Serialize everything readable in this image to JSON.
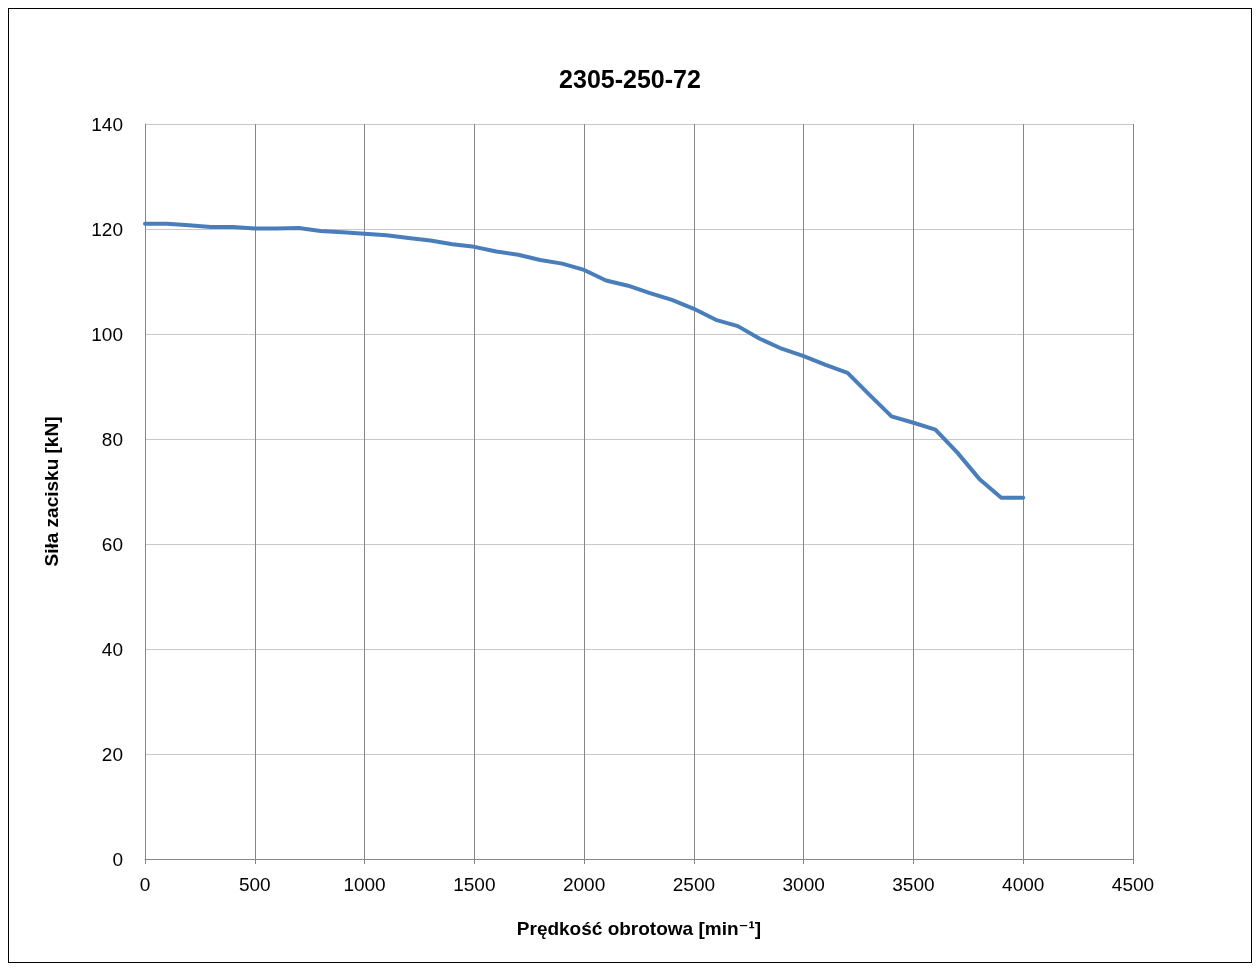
{
  "chart_data": {
    "type": "line",
    "title": "2305-250-72",
    "xlabel": "Prędkość obrotowa [min⁻¹]",
    "ylabel": "Siła zacisku [kN]",
    "x": [
      0,
      100,
      200,
      300,
      400,
      500,
      600,
      700,
      800,
      900,
      1000,
      1100,
      1200,
      1300,
      1400,
      1500,
      1600,
      1700,
      1800,
      1900,
      2000,
      2100,
      2200,
      2300,
      2400,
      2500,
      2600,
      2700,
      2800,
      2900,
      3000,
      3100,
      3200,
      3300,
      3400,
      3500,
      3600,
      3700,
      3800,
      3900,
      4000
    ],
    "series": [
      {
        "color": "#4a7ebb",
        "values": [
          121,
          121,
          120.7,
          120.4,
          120.4,
          120.1,
          120.1,
          120.2,
          119.6,
          119.4,
          119.1,
          118.8,
          118.3,
          117.8,
          117.1,
          116.6,
          115.7,
          115.1,
          114.1,
          113.4,
          112.2,
          110.2,
          109.2,
          107.8,
          106.5,
          104.8,
          102.7,
          101.5,
          99.1,
          97.2,
          95.8,
          94.1,
          92.6,
          88.4,
          84.3,
          83.1,
          81.8,
          77.4,
          72.4,
          68.8,
          68.8
        ]
      }
    ],
    "xlim": [
      0,
      4500
    ],
    "xticks": [
      0,
      500,
      1000,
      1500,
      2000,
      2500,
      3000,
      3500,
      4000,
      4500
    ],
    "ylim": [
      0,
      140
    ],
    "yticks": [
      0,
      20,
      40,
      60,
      80,
      100,
      120,
      140
    ],
    "grid": true,
    "marker": "none",
    "line_style": "solid"
  }
}
